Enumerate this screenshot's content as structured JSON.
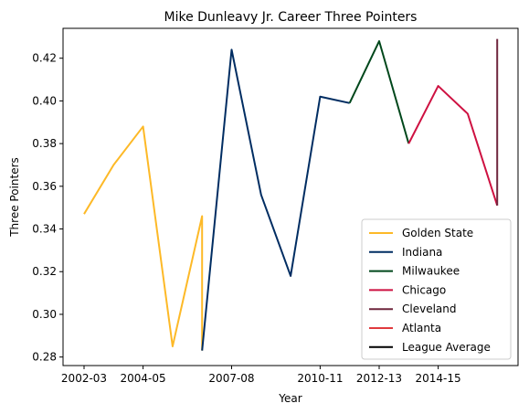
{
  "chart_data": {
    "type": "line",
    "title": "Mike Dunleavy Jr. Career Three Pointers",
    "xlabel": "Year",
    "ylabel": "Three Pointers",
    "x_ticks": [
      "2002-03",
      "2004-05",
      "2007-08",
      "2010-11",
      "2012-13",
      "2014-15"
    ],
    "y_ticks": [
      "0.28",
      "0.30",
      "0.32",
      "0.34",
      "0.36",
      "0.38",
      "0.40",
      "0.42"
    ],
    "ylim": [
      0.276,
      0.434
    ],
    "grid": false,
    "legend_position": "lower-right",
    "series": [
      {
        "name": "Golden State",
        "color": "#FDB927",
        "points": [
          {
            "x": "2002-03",
            "y": 0.347
          },
          {
            "x": "2003-04",
            "y": 0.37
          },
          {
            "x": "2004-05",
            "y": 0.388
          },
          {
            "x": "2005-06",
            "y": 0.285
          },
          {
            "x": "2006-07",
            "y": 0.346
          },
          {
            "x": "2006-07",
            "y": 0.283
          }
        ]
      },
      {
        "name": "Indiana",
        "color": "#002D62",
        "points": [
          {
            "x": "2006-07",
            "y": 0.283
          },
          {
            "x": "2007-08",
            "y": 0.424
          },
          {
            "x": "2008-09",
            "y": 0.356
          },
          {
            "x": "2009-10",
            "y": 0.318
          },
          {
            "x": "2010-11",
            "y": 0.402
          },
          {
            "x": "2011-12",
            "y": 0.399
          }
        ]
      },
      {
        "name": "Milwaukee",
        "color": "#00471B",
        "points": [
          {
            "x": "2011-12",
            "y": 0.399
          },
          {
            "x": "2012-13",
            "y": 0.428
          },
          {
            "x": "2013-14",
            "y": 0.38
          }
        ]
      },
      {
        "name": "Chicago",
        "color": "#CE1141",
        "points": [
          {
            "x": "2013-14",
            "y": 0.38
          },
          {
            "x": "2014-15",
            "y": 0.407
          },
          {
            "x": "2015-16",
            "y": 0.394
          },
          {
            "x": "2016-17",
            "y": 0.351
          }
        ]
      },
      {
        "name": "Cleveland",
        "color": "#6F263D",
        "points": [
          {
            "x": "2016-17",
            "y": 0.351
          },
          {
            "x": "2016-17",
            "y": 0.429
          }
        ]
      },
      {
        "name": "Atlanta",
        "color": "#E03A3E",
        "points": []
      },
      {
        "name": "League Average",
        "color": "#000000",
        "points": []
      }
    ]
  }
}
